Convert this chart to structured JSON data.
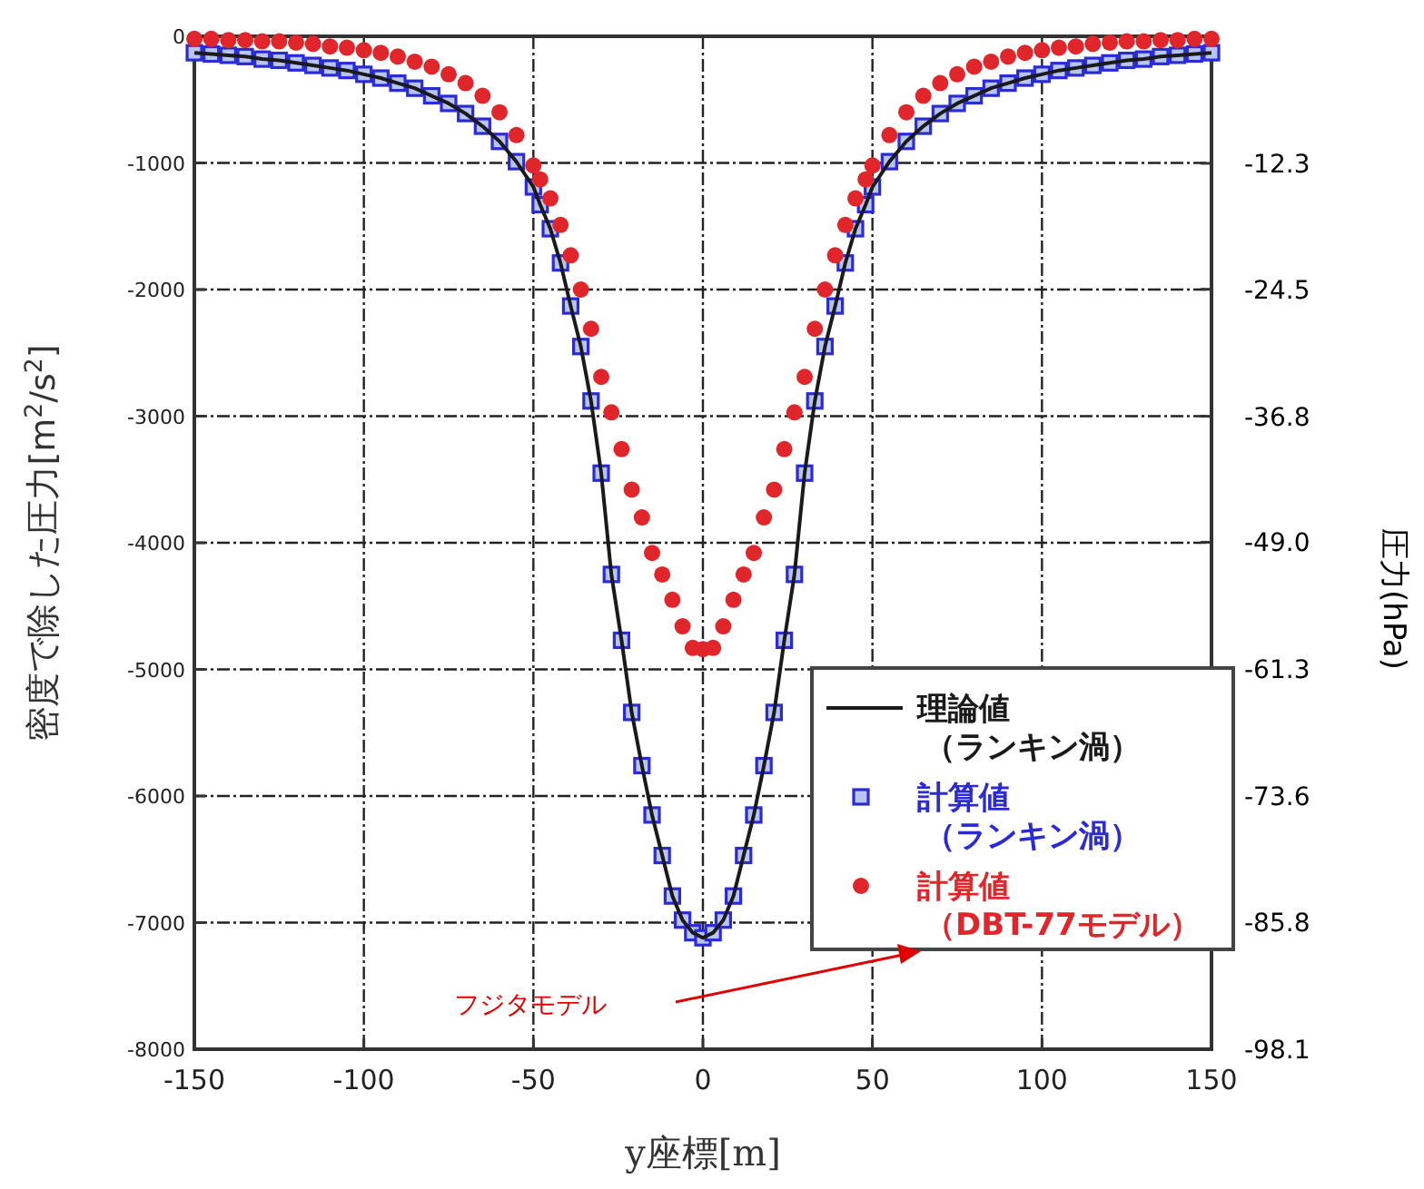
{
  "chart_data": {
    "type": "scatter",
    "xlabel": "y座標[m]",
    "ylabel": "密度で除した圧力[m$^{2}$/s$^{2}$]",
    "y2label": "圧力(hPa)",
    "xlim": [
      -150,
      150
    ],
    "xticks": [
      -150,
      -100,
      -50,
      0,
      50,
      100,
      150
    ],
    "ylim": [
      -8000,
      0
    ],
    "yticks": [
      -8000,
      -7000,
      -6000,
      -5000,
      -4000,
      -3000,
      -2000,
      -1000,
      0
    ],
    "y2lim": [
      -98.1,
      0
    ],
    "y2ticks": [
      -12.3,
      -24.5,
      -36.8,
      {
        "value": -49.0,
        "label": "-49.0"
      },
      -61.3,
      -73.6,
      -85.8,
      -98.1
    ],
    "grid": true,
    "legend": "right",
    "annotations": [
      "フジタモデル"
    ],
    "series": [
      {
        "name": "理論値（ランキン渦）",
        "type": "line",
        "color": "#1a1a1a",
        "marker": "none",
        "line_style": "solid",
        "x": [
          -150,
          -145,
          -140,
          -135,
          -130,
          -125,
          -120,
          -115,
          -110,
          -105,
          -100,
          -95,
          -90,
          -85,
          -80,
          -75,
          -70,
          -65,
          -60,
          -55,
          -50,
          -48,
          -45,
          -42,
          -39,
          -36,
          -33,
          -30,
          -27,
          -24,
          -21,
          -18,
          -15,
          -12,
          -9,
          -6,
          -3,
          0,
          3,
          6,
          9,
          12,
          15,
          18,
          21,
          24,
          27,
          30,
          33,
          36,
          39,
          42,
          45,
          48,
          50,
          55,
          60,
          65,
          70,
          75,
          80,
          85,
          90,
          95,
          100,
          105,
          110,
          115,
          120,
          125,
          130,
          135,
          140,
          145,
          150
        ],
        "values": [
          -130,
          -140,
          -150,
          -160,
          -180,
          -190,
          -210,
          -230,
          -250,
          -270,
          -300,
          -330,
          -370,
          -410,
          -470,
          -530,
          -610,
          -710,
          -830,
          -990,
          -1190,
          -1330,
          -1520,
          -1790,
          -2130,
          -2450,
          -2880,
          -3450,
          -4250,
          -4770,
          -5340,
          -5760,
          -6150,
          -6470,
          -6790,
          -6980,
          -7080,
          -7120,
          -7080,
          -6980,
          -6790,
          -6470,
          -6150,
          -5760,
          -5340,
          -4770,
          -4250,
          -3450,
          -2880,
          -2450,
          -2130,
          -1790,
          -1520,
          -1330,
          -1190,
          -990,
          -830,
          -710,
          -610,
          -530,
          -470,
          -410,
          -370,
          -330,
          -300,
          -270,
          -250,
          -230,
          -210,
          -190,
          -180,
          -160,
          -150,
          -140,
          -130
        ]
      },
      {
        "name": "計算値（ランキン渦）",
        "color": "#2b2bd6",
        "marker": "square",
        "x": [
          -150,
          -145,
          -140,
          -135,
          -130,
          -125,
          -120,
          -115,
          -110,
          -105,
          -100,
          -95,
          -90,
          -85,
          -80,
          -75,
          -70,
          -65,
          -60,
          -55,
          -50,
          -48,
          -45,
          -42,
          -39,
          -36,
          -33,
          -30,
          -27,
          -24,
          -21,
          -18,
          -15,
          -12,
          -9,
          -6,
          -3,
          0,
          3,
          6,
          9,
          12,
          15,
          18,
          21,
          24,
          27,
          30,
          33,
          36,
          39,
          42,
          45,
          48,
          50,
          55,
          60,
          65,
          70,
          75,
          80,
          85,
          90,
          95,
          100,
          105,
          110,
          115,
          120,
          125,
          130,
          135,
          140,
          145,
          150
        ],
        "values": [
          -130,
          -140,
          -150,
          -160,
          -180,
          -190,
          -210,
          -230,
          -250,
          -270,
          -300,
          -330,
          -370,
          -410,
          -470,
          -530,
          -610,
          -710,
          -830,
          -990,
          -1190,
          -1330,
          -1520,
          -1790,
          -2130,
          -2450,
          -2880,
          -3450,
          -4250,
          -4770,
          -5340,
          -5760,
          -6150,
          -6470,
          -6790,
          -6980,
          -7080,
          -7120,
          -7080,
          -6980,
          -6790,
          -6470,
          -6150,
          -5760,
          -5340,
          -4770,
          -4250,
          -3450,
          -2880,
          -2450,
          -2130,
          -1790,
          -1520,
          -1330,
          -1190,
          -990,
          -830,
          -710,
          -610,
          -530,
          -470,
          -410,
          -370,
          -330,
          -300,
          -270,
          -250,
          -230,
          -210,
          -190,
          -180,
          -160,
          -150,
          -140,
          -130
        ]
      },
      {
        "name": "計算値（DBT-77モデル）",
        "color": "#e0262a",
        "marker": "circle",
        "x": [
          -150,
          -145,
          -140,
          -135,
          -130,
          -125,
          -120,
          -115,
          -110,
          -105,
          -100,
          -95,
          -90,
          -85,
          -80,
          -75,
          -70,
          -65,
          -60,
          -55,
          -50,
          -48,
          -45,
          -42,
          -39,
          -36,
          -33,
          -30,
          -27,
          -24,
          -21,
          -18,
          -15,
          -12,
          -9,
          -6,
          -3,
          0,
          3,
          6,
          9,
          12,
          15,
          18,
          21,
          24,
          27,
          30,
          33,
          36,
          39,
          42,
          45,
          48,
          50,
          55,
          60,
          65,
          70,
          75,
          80,
          85,
          90,
          95,
          100,
          105,
          110,
          115,
          120,
          125,
          130,
          135,
          140,
          145,
          150
        ],
        "values": [
          -20,
          -20,
          -30,
          -30,
          -40,
          -40,
          -50,
          -60,
          -80,
          -90,
          -110,
          -130,
          -160,
          -200,
          -240,
          -300,
          -370,
          -470,
          -600,
          -780,
          -1020,
          -1130,
          -1280,
          -1490,
          -1730,
          -2000,
          -2310,
          -2690,
          -2970,
          -3260,
          -3580,
          -3800,
          -4080,
          -4250,
          -4450,
          -4660,
          -4830,
          -4840,
          -4830,
          -4660,
          -4450,
          -4250,
          -4080,
          -3800,
          -3580,
          -3260,
          -2970,
          -2690,
          -2310,
          -2000,
          -1730,
          -1490,
          -1280,
          -1130,
          -1020,
          -780,
          -600,
          -470,
          -370,
          -300,
          -240,
          -200,
          -160,
          -130,
          -110,
          -90,
          -80,
          -60,
          -50,
          -40,
          -40,
          -30,
          -30,
          -20,
          -20
        ]
      }
    ]
  }
}
